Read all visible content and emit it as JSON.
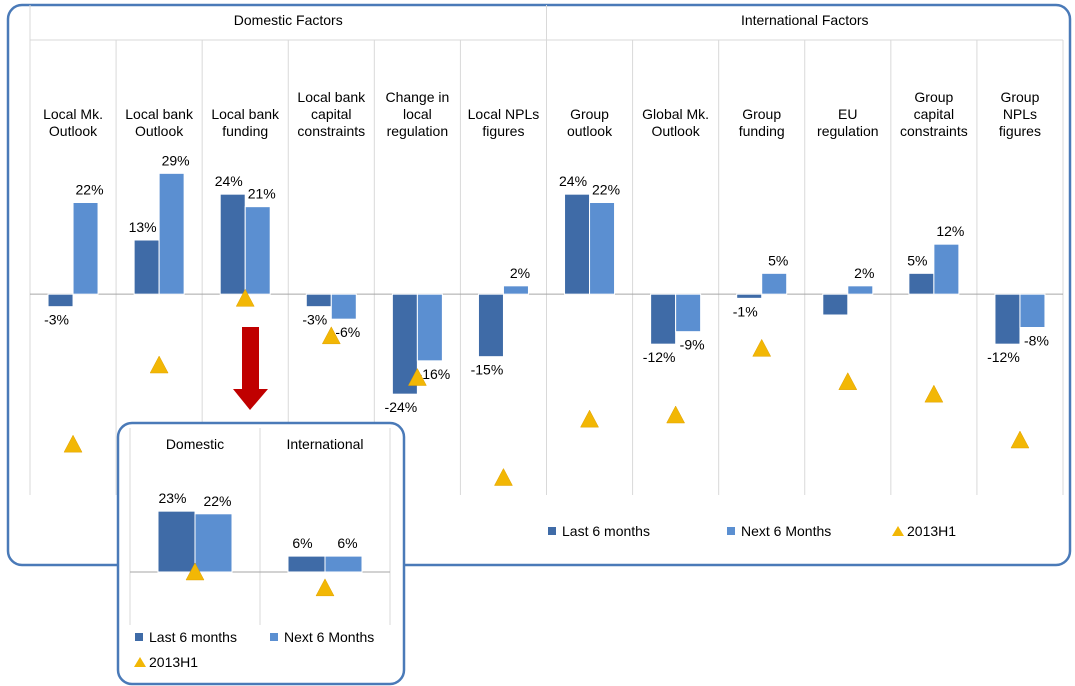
{
  "chart_data": [
    {
      "type": "bar",
      "groups": [
        "Domestic Factors",
        "International Factors"
      ],
      "categories": [
        "Local Mk.\nOutlook",
        "Local bank\nOutlook",
        "Local bank\nfunding",
        "Local bank\ncapital\nconstraints",
        "Change in\nlocal\nregulation",
        "Local NPLs\nfigures",
        "Group\noutlook",
        "Global Mk.\nOutlook",
        "Group\nfunding",
        "EU\nregulation",
        "Group\ncapital\nconstraints",
        "Group\nNPLs\nfigures"
      ],
      "series": [
        {
          "name": "Last 6 months",
          "color": "#3f6ba7",
          "marker": "bar",
          "values": [
            -3,
            13,
            24,
            -3,
            -24,
            -15,
            24,
            -12,
            -1,
            -5,
            5,
            -12
          ],
          "value_labels": [
            "-3%",
            "13%",
            "24%",
            "-3%",
            "-24%",
            "-15%",
            "24%",
            "-12%",
            "-1%",
            null,
            "5%",
            "-12%"
          ]
        },
        {
          "name": "Next 6 Months",
          "color": "#5b8fd1",
          "marker": "bar",
          "values": [
            22,
            29,
            21,
            -6,
            -16,
            2,
            22,
            -9,
            5,
            2,
            12,
            -8
          ],
          "value_labels": [
            "22%",
            "29%",
            "21%",
            "-6%",
            "-16%",
            "2%",
            "22%",
            "-9%",
            "5%",
            "2%",
            "12%",
            "-8%"
          ]
        },
        {
          "name": "2013H1",
          "color": "#f2b705",
          "marker": "triangle",
          "values": [
            -36,
            -17,
            -1,
            -10,
            -20,
            -44,
            -30,
            -29,
            -13,
            -21,
            -24,
            -35
          ]
        }
      ],
      "ylim": [
        -47,
        37
      ]
    },
    {
      "type": "bar",
      "categories": [
        "Domestic",
        "International"
      ],
      "series": [
        {
          "name": "Last 6 months",
          "color": "#3f6ba7",
          "marker": "bar",
          "values": [
            23,
            6
          ],
          "value_labels": [
            "23%",
            "6%"
          ]
        },
        {
          "name": "Next 6 Months",
          "color": "#5b8fd1",
          "marker": "bar",
          "values": [
            22,
            6
          ],
          "value_labels": [
            "22%",
            "6%"
          ]
        },
        {
          "name": "2013H1",
          "color": "#f2b705",
          "marker": "triangle",
          "values": [
            0,
            -6
          ]
        }
      ],
      "ylim": [
        -14,
        31
      ]
    }
  ]
}
